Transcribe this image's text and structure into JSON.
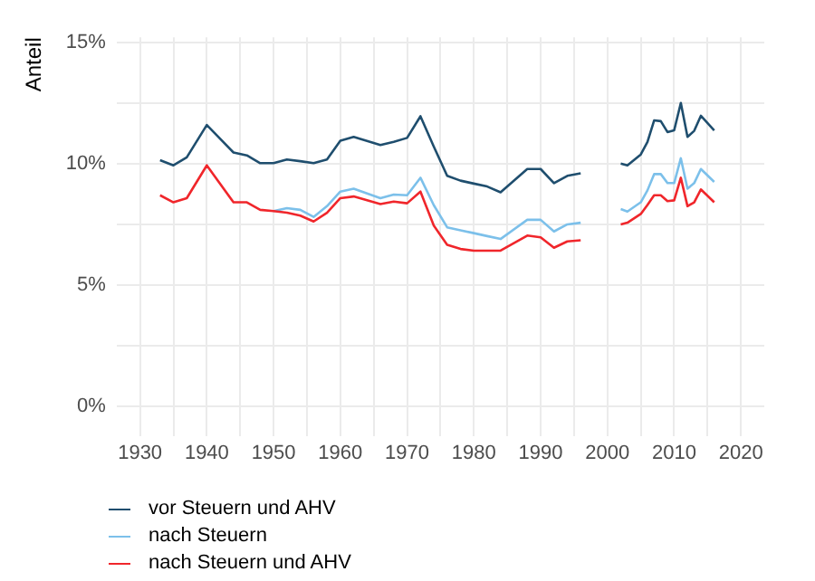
{
  "chart_data": {
    "type": "line",
    "ylabel": "Anteil",
    "x": [
      1933,
      1935,
      1937,
      1940,
      1944,
      1946,
      1948,
      1950,
      1952,
      1954,
      1956,
      1958,
      1960,
      1962,
      1966,
      1968,
      1970,
      1972,
      1974,
      1976,
      1978,
      1980,
      1982,
      1984,
      1988,
      1990,
      1992,
      1994,
      1996,
      1999,
      2002,
      2003,
      2005,
      2006,
      2007,
      2008,
      2009,
      2010,
      2011,
      2012,
      2013,
      2014,
      2016
    ],
    "series": [
      {
        "name": "vor Steuern und AHV",
        "color": "#1f4e6e",
        "values": [
          10.14,
          9.93,
          10.26,
          11.59,
          10.46,
          10.34,
          10.02,
          10.02,
          10.17,
          10.1,
          10.02,
          10.17,
          10.94,
          11.1,
          10.77,
          10.9,
          11.06,
          11.95,
          10.7,
          9.5,
          9.3,
          9.18,
          9.06,
          8.82,
          9.78,
          9.78,
          9.2,
          9.5,
          9.6,
          null,
          10.0,
          9.93,
          10.38,
          10.89,
          11.78,
          11.75,
          11.3,
          11.37,
          12.5,
          11.1,
          11.35,
          11.97,
          11.37
        ]
      },
      {
        "name": "nach Steuern",
        "color": "#7cc0ea",
        "values": [
          null,
          null,
          null,
          null,
          null,
          null,
          null,
          8.05,
          8.17,
          8.1,
          7.81,
          8.25,
          8.85,
          8.97,
          8.58,
          8.73,
          8.7,
          9.42,
          8.29,
          7.38,
          7.26,
          7.14,
          7.02,
          6.9,
          7.69,
          7.69,
          7.21,
          7.5,
          7.57,
          null,
          8.13,
          8.03,
          8.41,
          8.9,
          9.57,
          9.57,
          9.2,
          9.2,
          10.22,
          8.97,
          9.2,
          9.78,
          9.25
        ]
      },
      {
        "name": "nach Steuern und AHV",
        "color": "#f0262b",
        "values": [
          8.7,
          8.41,
          8.58,
          9.93,
          8.41,
          8.41,
          8.1,
          8.05,
          7.98,
          7.86,
          7.62,
          7.98,
          8.58,
          8.65,
          8.34,
          8.44,
          8.37,
          8.85,
          7.45,
          6.66,
          6.49,
          6.42,
          6.42,
          6.42,
          7.04,
          6.97,
          6.54,
          6.8,
          6.85,
          null,
          7.5,
          7.57,
          7.93,
          8.3,
          8.7,
          8.7,
          8.46,
          8.49,
          9.42,
          8.25,
          8.41,
          8.94,
          8.41
        ]
      }
    ],
    "xlim": [
      1926.5,
      2023.5
    ],
    "xticks": [
      1930,
      {
        "value": 1935,
        "label": null
      },
      1940,
      {
        "value": 1945,
        "label": null
      },
      1950,
      {
        "value": 1955,
        "label": null
      },
      1960,
      {
        "value": 1965,
        "label": null
      },
      1970,
      {
        "value": 1975,
        "label": null
      },
      1980,
      {
        "value": 1985,
        "label": null
      },
      1990,
      {
        "value": 1995,
        "label": null
      },
      2000,
      {
        "value": 2005,
        "label": null
      },
      2010,
      {
        "value": 2015,
        "label": null
      },
      2020
    ],
    "ylim": [
      -1.2,
      15.2
    ],
    "yticks": [
      {
        "value": 0,
        "label": "0%"
      },
      {
        "value": 2.5,
        "label": null
      },
      {
        "value": 5,
        "label": "5%"
      },
      {
        "value": 7.5,
        "label": null
      },
      {
        "value": 10,
        "label": "10%"
      },
      {
        "value": 12.5,
        "label": null
      },
      {
        "value": 15,
        "label": "15%"
      }
    ],
    "grid": true,
    "legend": "bottom left",
    "marker": "none",
    "line_style": "solid"
  }
}
